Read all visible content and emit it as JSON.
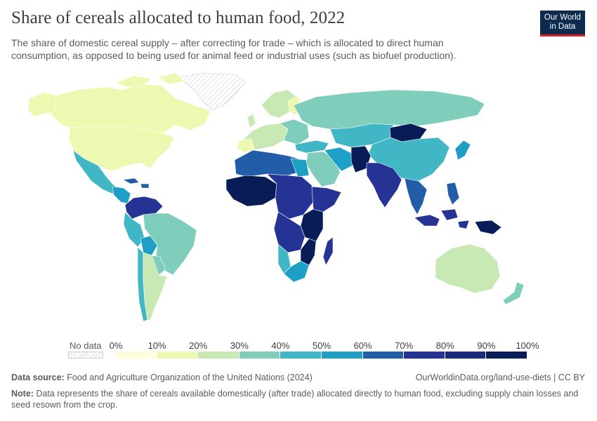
{
  "header": {
    "title": "Share of cereals allocated to human food, 2022",
    "subtitle": "The share of domestic cereal supply – after correcting for trade – which is allocated to direct human consumption, as opposed to being used for animal feed or industrial uses (such as biofuel production)."
  },
  "logo": {
    "line1": "Our World",
    "line2": "in Data",
    "bg": "#0d2a4f",
    "accent": "#ce261e"
  },
  "legend": {
    "no_data_label": "No data",
    "ticks": [
      "0%",
      "10%",
      "20%",
      "30%",
      "40%",
      "50%",
      "60%",
      "70%",
      "80%",
      "90%",
      "100%"
    ],
    "colors": [
      "#fffddb",
      "#edf8b1",
      "#c8e9b3",
      "#7fcdbb",
      "#41b6c4",
      "#1d9fc6",
      "#225ea8",
      "#253494",
      "#1a2a7a",
      "#081d58"
    ]
  },
  "footer": {
    "source_label": "Data source:",
    "source_text": "Food and Agriculture Organization of the United Nations (2024)",
    "url": "OurWorldinData.org/land-use-diets | CC BY",
    "note_label": "Note:",
    "note_text": "Data represents the share of cereals available domestically (after trade) allocated directly to human food, excluding supply chain losses and seed resown from the crop."
  }
}
